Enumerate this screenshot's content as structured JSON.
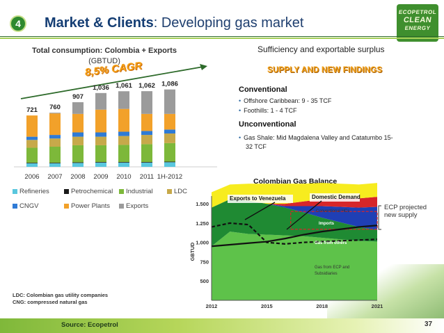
{
  "slide": {
    "number_badge": "4",
    "title_bold": "Market & Clients",
    "title_rest": ": Developing gas market",
    "logo_text": [
      "ECOPETROL",
      "CLEAN",
      "ENERGY"
    ],
    "page_number": "37",
    "source": "Source: Ecopetrol",
    "definitions": [
      "LDC: Colombian gas utility companies",
      "CNG: compressed natural gas"
    ],
    "accent_colors": {
      "title": "#143d73",
      "green": "#3f8f2e",
      "orange": "#f3a21a"
    }
  },
  "left_chart": {
    "title": "Total consumption: Colombia + Exports",
    "subtitle": "(GBTUD)",
    "annotation": "8,5% CAGR",
    "legend": [
      {
        "name": "Refineries",
        "color": "#59c7de"
      },
      {
        "name": "Petrochemical",
        "color": "#1a1a1a"
      },
      {
        "name": "Industrial",
        "color": "#7db83a"
      },
      {
        "name": "LDC",
        "color": "#c7a94a"
      },
      {
        "name": "CNGV",
        "color": "#2f7bd6"
      },
      {
        "name": "Power Plants",
        "color": "#f2a12a"
      },
      {
        "name": "Exports",
        "color": "#9b9b9b"
      }
    ]
  },
  "chart_data": [
    {
      "type": "bar",
      "stacked": true,
      "title": "Total consumption: Colombia + Exports",
      "subtitle": "(GBTUD)",
      "categories": [
        "2006",
        "2007",
        "2008",
        "2009",
        "2010",
        "2011",
        "1H-2012"
      ],
      "totals": [
        721,
        760,
        907,
        1036,
        1061,
        1062,
        1086
      ],
      "total_labels": [
        "721",
        "760",
        "907",
        "1,036",
        "1,061",
        "1,062",
        "1,086"
      ],
      "series": [
        {
          "name": "Refineries",
          "color": "#59c7de",
          "values": [
            50,
            50,
            55,
            60,
            60,
            60,
            65
          ]
        },
        {
          "name": "Petrochemical",
          "color": "#1a1a1a",
          "values": [
            8,
            8,
            8,
            8,
            8,
            8,
            8
          ]
        },
        {
          "name": "Industrial",
          "color": "#7db83a",
          "values": [
            210,
            225,
            240,
            235,
            240,
            250,
            260
          ]
        },
        {
          "name": "LDC",
          "color": "#c7a94a",
          "values": [
            110,
            115,
            120,
            120,
            125,
            130,
            135
          ]
        },
        {
          "name": "CNGV",
          "color": "#2f7bd6",
          "values": [
            45,
            50,
            60,
            60,
            60,
            55,
            55
          ]
        },
        {
          "name": "Power Plants",
          "color": "#f2a12a",
          "values": [
            298,
            302,
            260,
            320,
            320,
            240,
            220
          ]
        },
        {
          "name": "Exports",
          "color": "#9b9b9b",
          "values": [
            0,
            10,
            164,
            233,
            248,
            319,
            343
          ]
        }
      ],
      "annotation": "8,5% CAGR",
      "legend_position": "bottom",
      "grid": false
    },
    {
      "type": "area",
      "title": "Colombian Gas Balance",
      "ylabel": "GBTUD",
      "x_ticks": [
        "2012",
        "2015",
        "2018",
        "2021"
      ],
      "y_ticks": [
        "500",
        "750",
        "1.000",
        "1.250",
        "1.500"
      ],
      "xlim": [
        2012,
        2021
      ],
      "ylim": [
        250,
        1600
      ],
      "x": [
        2012,
        2013,
        2014,
        2015,
        2016,
        2017,
        2018,
        2019,
        2020,
        2021
      ],
      "stack_series": [
        {
          "name": "Gas from ECP and Subsidiaries",
          "color": "#5ec24a",
          "values": [
            700,
            890,
            860,
            850,
            840,
            830,
            810,
            790,
            770,
            760
          ]
        },
        {
          "name": "Gas from others",
          "color": "#1f8a33",
          "values": [
            500,
            420,
            430,
            400,
            360,
            310,
            260,
            220,
            180,
            150
          ]
        },
        {
          "name": "Imports",
          "color": "#1f3fb5",
          "values": [
            0,
            0,
            0,
            0,
            20,
            80,
            150,
            200,
            250,
            300
          ]
        },
        {
          "name": "Conventional HCs",
          "color": "#d7262a",
          "values": [
            0,
            0,
            0,
            0,
            30,
            60,
            90,
            110,
            120,
            130
          ]
        },
        {
          "name": "",
          "color": "#f7ec1f",
          "values": [
            200,
            190,
            220,
            260,
            260,
            230,
            210,
            190,
            180,
            180
          ]
        }
      ],
      "lines": [
        {
          "name": "Domestic Demand",
          "style": "solid",
          "color": "#111111",
          "values": [
            950,
            970,
            990,
            1010,
            1050,
            1100,
            1140,
            1170,
            1200,
            1220
          ]
        },
        {
          "name": "Exports to Venezuela",
          "style": "dashed",
          "color": "#111111",
          "values": [
            1200,
            1250,
            1230,
            1000,
            980,
            1000,
            1010,
            1020,
            1030,
            1040
          ]
        }
      ],
      "annotations": [
        "Exports to Venezuela",
        "Domestic Demand",
        "Conventional HCs",
        "Imports",
        "Gas from others",
        "Gas from ECP and Subsidiaries",
        "ECP projected new supply"
      ]
    }
  ],
  "right_panel": {
    "heading": "Sufficiency and exportable surplus",
    "subheading": "SUPPLY AND NEW FINDINGS",
    "conventional": {
      "label": "Conventional",
      "bullets": [
        "Offshore Caribbean: 9 - 35 TCF",
        "Foothills: 1 - 4 TCF"
      ]
    },
    "unconventional": {
      "label": "Unconventional",
      "bullets": [
        "Gas Shale: Mid Magdalena Valley and Catatumbo 15-",
        "32 TCF"
      ]
    },
    "gas_balance_title": "Colombian Gas Balance",
    "ecp_label_line1": "ECP projected",
    "ecp_label_line2": "new supply"
  }
}
